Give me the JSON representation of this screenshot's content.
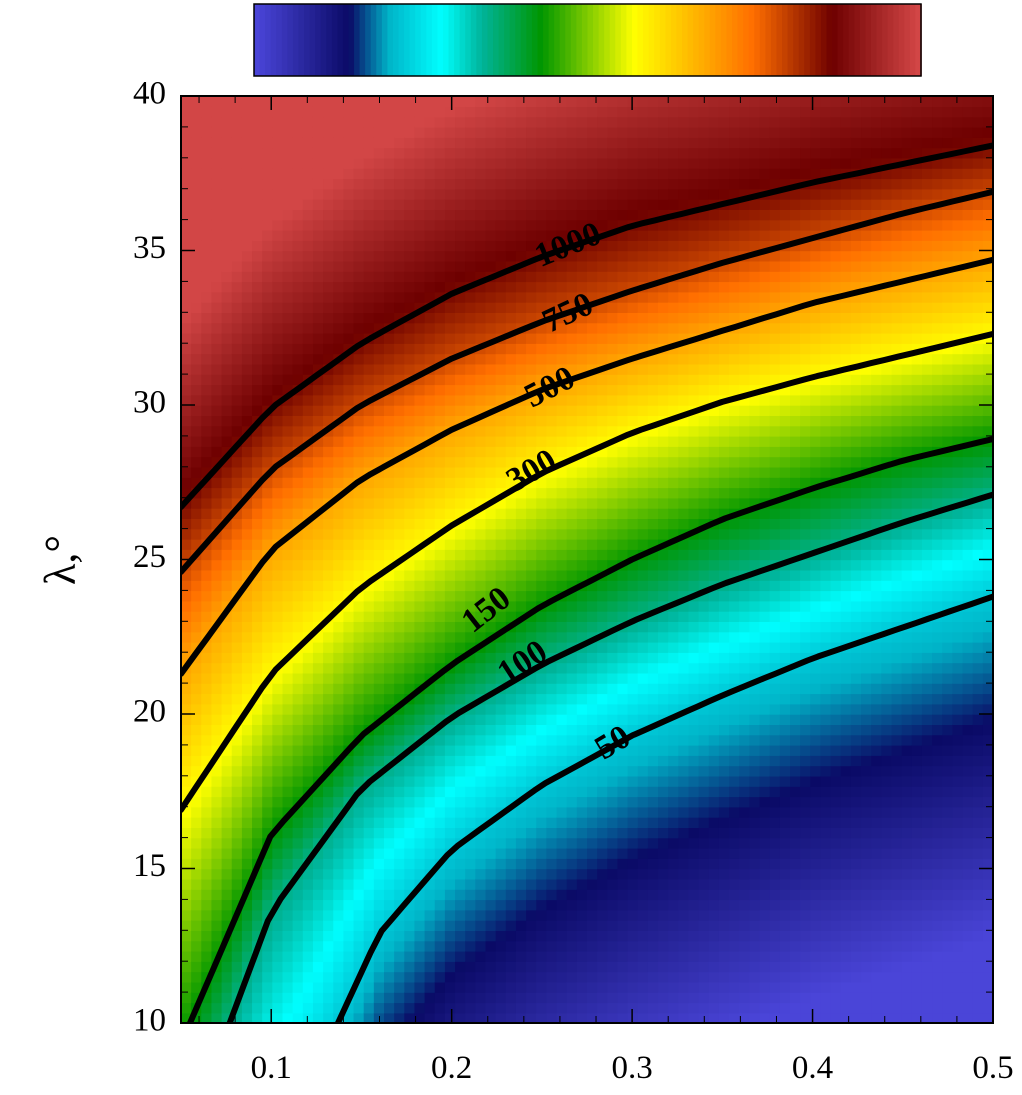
{
  "chart_data": {
    "type": "heatmap",
    "title": "",
    "xlabel": "",
    "ylabel": "λ,°",
    "xlim": [
      0.05,
      0.5
    ],
    "ylim": [
      10,
      40
    ],
    "x_ticks": [
      0.1,
      0.2,
      0.3,
      0.4,
      0.5
    ],
    "x_tick_labels": [
      "0.1",
      "0.2",
      "0.3",
      "0.4",
      "0.5"
    ],
    "y_ticks": [
      10,
      15,
      20,
      25,
      30,
      35,
      40
    ],
    "y_tick_labels": [
      "10",
      "15",
      "20",
      "25",
      "30",
      "35",
      "40"
    ],
    "grid": false,
    "colorbar": {
      "placement": "top",
      "labels": [],
      "colors": [
        "#4a45d8",
        "#0a0a66",
        "#00b4c8",
        "#00ffff",
        "#00b49b",
        "#009600",
        "#ffff00",
        "#ff6e00",
        "#6e0000",
        "#d24646"
      ],
      "stops": [
        0.0,
        0.14,
        0.2,
        0.28,
        0.34,
        0.43,
        0.57,
        0.75,
        0.87,
        1.0
      ]
    },
    "field_note": "",
    "contours": [
      {
        "level": 50,
        "label": "50",
        "x": [
          0.137,
          0.16,
          0.2,
          0.25,
          0.3,
          0.35,
          0.4,
          0.45,
          0.5
        ],
        "y": [
          10.0,
          12.9,
          15.6,
          17.7,
          19.3,
          20.6,
          21.8,
          22.8,
          23.8
        ]
      },
      {
        "level": 100,
        "label": "100",
        "x": [
          0.077,
          0.1,
          0.15,
          0.2,
          0.25,
          0.3,
          0.35,
          0.4,
          0.45,
          0.5
        ],
        "y": [
          10.0,
          13.6,
          17.6,
          19.9,
          21.6,
          23.0,
          24.2,
          25.2,
          26.2,
          27.1
        ]
      },
      {
        "level": 150,
        "label": "150",
        "x": [
          0.055,
          0.1,
          0.15,
          0.2,
          0.25,
          0.3,
          0.35,
          0.4,
          0.45,
          0.5
        ],
        "y": [
          10.0,
          16.1,
          19.3,
          21.6,
          23.5,
          25.0,
          26.3,
          27.3,
          28.2,
          28.9
        ]
      },
      {
        "level": 300,
        "label": "300",
        "x": [
          0.05,
          0.1,
          0.15,
          0.2,
          0.25,
          0.3,
          0.35,
          0.4,
          0.45,
          0.5
        ],
        "y": [
          16.9,
          21.3,
          24.1,
          26.1,
          27.8,
          29.1,
          30.1,
          30.9,
          31.6,
          32.3
        ]
      },
      {
        "level": 500,
        "label": "500",
        "x": [
          0.05,
          0.1,
          0.15,
          0.2,
          0.25,
          0.3,
          0.35,
          0.4,
          0.45,
          0.5
        ],
        "y": [
          21.3,
          25.3,
          27.6,
          29.2,
          30.5,
          31.5,
          32.4,
          33.3,
          34.0,
          34.7
        ]
      },
      {
        "level": 750,
        "label": "750",
        "x": [
          0.05,
          0.1,
          0.15,
          0.2,
          0.25,
          0.3,
          0.35,
          0.4,
          0.45,
          0.5
        ],
        "y": [
          24.6,
          27.9,
          30.0,
          31.5,
          32.7,
          33.7,
          34.6,
          35.4,
          36.2,
          36.9
        ]
      },
      {
        "level": 1000,
        "label": "1000",
        "x": [
          0.05,
          0.1,
          0.15,
          0.2,
          0.25,
          0.3,
          0.35,
          0.4,
          0.45,
          0.5
        ],
        "y": [
          26.7,
          29.9,
          32.0,
          33.6,
          34.8,
          35.8,
          36.5,
          37.2,
          37.8,
          38.4
        ]
      }
    ],
    "contour_label_positions": [
      {
        "label": "50",
        "x": 0.29,
        "y": 19.0,
        "angle": -31
      },
      {
        "label": "100",
        "x": 0.24,
        "y": 21.6,
        "angle": -33
      },
      {
        "label": "150",
        "x": 0.22,
        "y": 23.3,
        "angle": -38
      },
      {
        "label": "300",
        "x": 0.245,
        "y": 27.8,
        "angle": -30
      },
      {
        "label": "500",
        "x": 0.255,
        "y": 30.5,
        "angle": -27
      },
      {
        "label": "750",
        "x": 0.265,
        "y": 32.9,
        "angle": -25
      },
      {
        "label": "1000",
        "x": 0.265,
        "y": 35.1,
        "angle": -22
      }
    ]
  }
}
